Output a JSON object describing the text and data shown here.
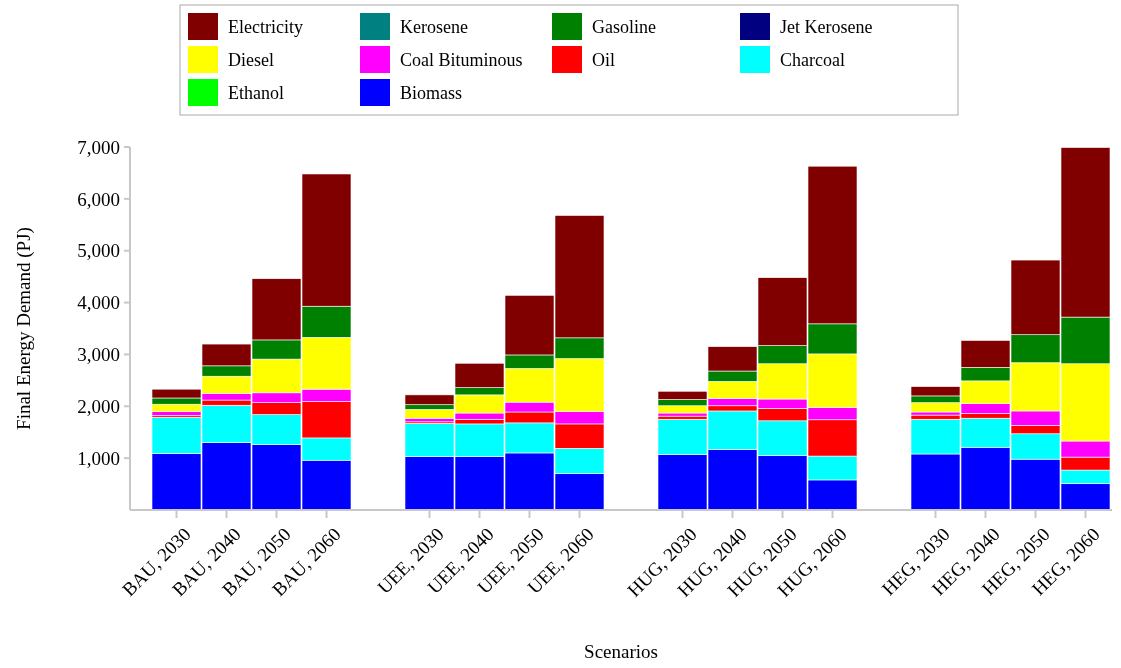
{
  "chart_data": {
    "type": "bar",
    "stacked": true,
    "xlabel": "Scenarios",
    "ylabel": "Final Energy Demand (PJ)",
    "categories": [
      "BAU, 2030",
      "BAU, 2040",
      "BAU, 2050",
      "BAU, 2060",
      "UEE, 2030",
      "UEE, 2040",
      "UEE, 2050",
      "UEE, 2060",
      "HUG, 2030",
      "HUG, 2040",
      "HUG, 2050",
      "HUG, 2060",
      "HEG, 2030",
      "HEG, 2040",
      "HEG, 2050",
      "HEG, 2060"
    ],
    "series": [
      {
        "name": "Biomass",
        "color": "#0000ff",
        "values": [
          1090,
          1300,
          1260,
          960,
          1030,
          1030,
          1100,
          700,
          1070,
          1170,
          1050,
          580,
          1080,
          1210,
          980,
          510
        ]
      },
      {
        "name": "Ethanol",
        "color": "#00ff00",
        "values": [
          0,
          null,
          0,
          null,
          0,
          0,
          0,
          0,
          0,
          0,
          0,
          0,
          0,
          0,
          0,
          0
        ]
      },
      {
        "name": "Charcoal",
        "color": "#00ffff",
        "values": [
          700,
          720,
          580,
          430,
          640,
          630,
          580,
          490,
          680,
          740,
          670,
          460,
          670,
          560,
          490,
          260
        ]
      },
      {
        "name": "Oil",
        "color": "#ff0000",
        "values": [
          30,
          100,
          230,
          700,
          30,
          90,
          210,
          470,
          60,
          100,
          240,
          700,
          80,
          90,
          160,
          250
        ]
      },
      {
        "name": "Coal Bituminous",
        "color": "#ff00ff",
        "values": [
          80,
          130,
          190,
          240,
          70,
          120,
          190,
          240,
          60,
          140,
          180,
          240,
          60,
          190,
          280,
          310
        ]
      },
      {
        "name": "Diesel",
        "color": "#ffff00",
        "values": [
          140,
          330,
          650,
          1000,
          170,
          350,
          650,
          1020,
          140,
          330,
          680,
          1030,
          180,
          440,
          930,
          1490
        ]
      },
      {
        "name": "Jet Kerosene",
        "color": "#000080",
        "values": [
          0,
          0,
          0,
          null,
          0,
          0,
          0,
          0,
          0,
          0,
          0,
          0,
          0,
          null,
          0,
          0
        ]
      },
      {
        "name": "Gasoline",
        "color": "#008000",
        "values": [
          120,
          200,
          370,
          600,
          90,
          140,
          260,
          400,
          120,
          200,
          350,
          580,
          130,
          260,
          540,
          900
        ]
      },
      {
        "name": "Kerosene",
        "color": "#008080",
        "values": [
          0,
          0,
          0,
          0,
          0,
          0,
          0,
          0,
          0,
          0,
          0,
          0,
          0,
          0,
          0,
          0
        ]
      },
      {
        "name": "Electricity",
        "color": "#800000",
        "values": [
          170,
          420,
          1180,
          2550,
          190,
          470,
          1150,
          2360,
          160,
          470,
          1310,
          3040,
          180,
          520,
          1440,
          3270
        ]
      }
    ],
    "ylim": [
      0,
      7000
    ],
    "yticks": [
      {
        "value": 1000,
        "label": "1,000"
      },
      {
        "value": 2000,
        "label": "2,000"
      },
      {
        "value": 3000,
        "label": "3,000"
      },
      {
        "value": 4000,
        "label": "4,000"
      },
      {
        "value": 5000,
        "label": "5,000"
      },
      {
        "value": 6000,
        "label": "6,000"
      },
      {
        "value": 7000,
        "label": "7,000"
      }
    ],
    "legend": "top",
    "grid": false
  }
}
